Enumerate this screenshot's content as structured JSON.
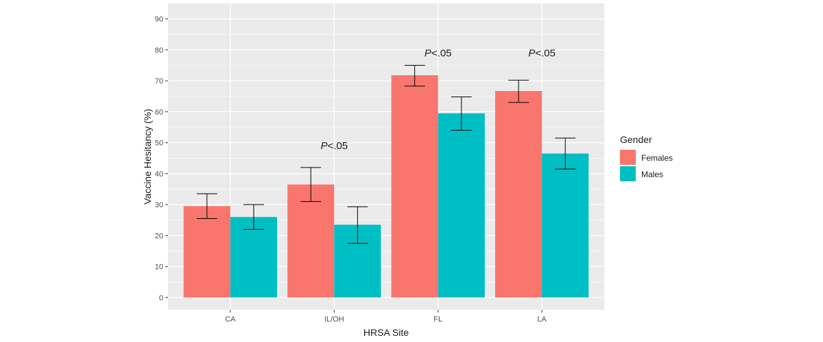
{
  "chart_data": {
    "type": "bar",
    "xlabel": "HRSA Site",
    "ylabel": "Vaccine Hesitancy (%)",
    "categories": [
      "CA",
      "IL/OH",
      "FL",
      "LA"
    ],
    "ylim": [
      -4,
      95
    ],
    "yticks": [
      0,
      10,
      20,
      30,
      40,
      50,
      60,
      70,
      80,
      90
    ],
    "grid": true,
    "legend": {
      "title": "Gender",
      "position": "right"
    },
    "series": [
      {
        "name": "Females",
        "color": "#F8766D",
        "values": [
          29.5,
          36.5,
          71.8,
          66.7
        ],
        "err_low": [
          25.5,
          31.0,
          68.3,
          63.0
        ],
        "err_high": [
          33.5,
          42.0,
          75.0,
          70.2
        ]
      },
      {
        "name": "Males",
        "color": "#00BFC4",
        "values": [
          26.0,
          23.5,
          59.5,
          46.5
        ],
        "err_low": [
          22.0,
          17.5,
          54.0,
          41.5
        ],
        "err_high": [
          30.0,
          29.3,
          64.8,
          51.5
        ]
      }
    ],
    "annotations": [
      {
        "category": "IL/OH",
        "y": 49,
        "italic": "P",
        "rest": "<.05"
      },
      {
        "category": "FL",
        "y": 79,
        "italic": "P",
        "rest": "<.05"
      },
      {
        "category": "LA",
        "y": 79,
        "italic": "P",
        "rest": "<.05"
      }
    ]
  }
}
